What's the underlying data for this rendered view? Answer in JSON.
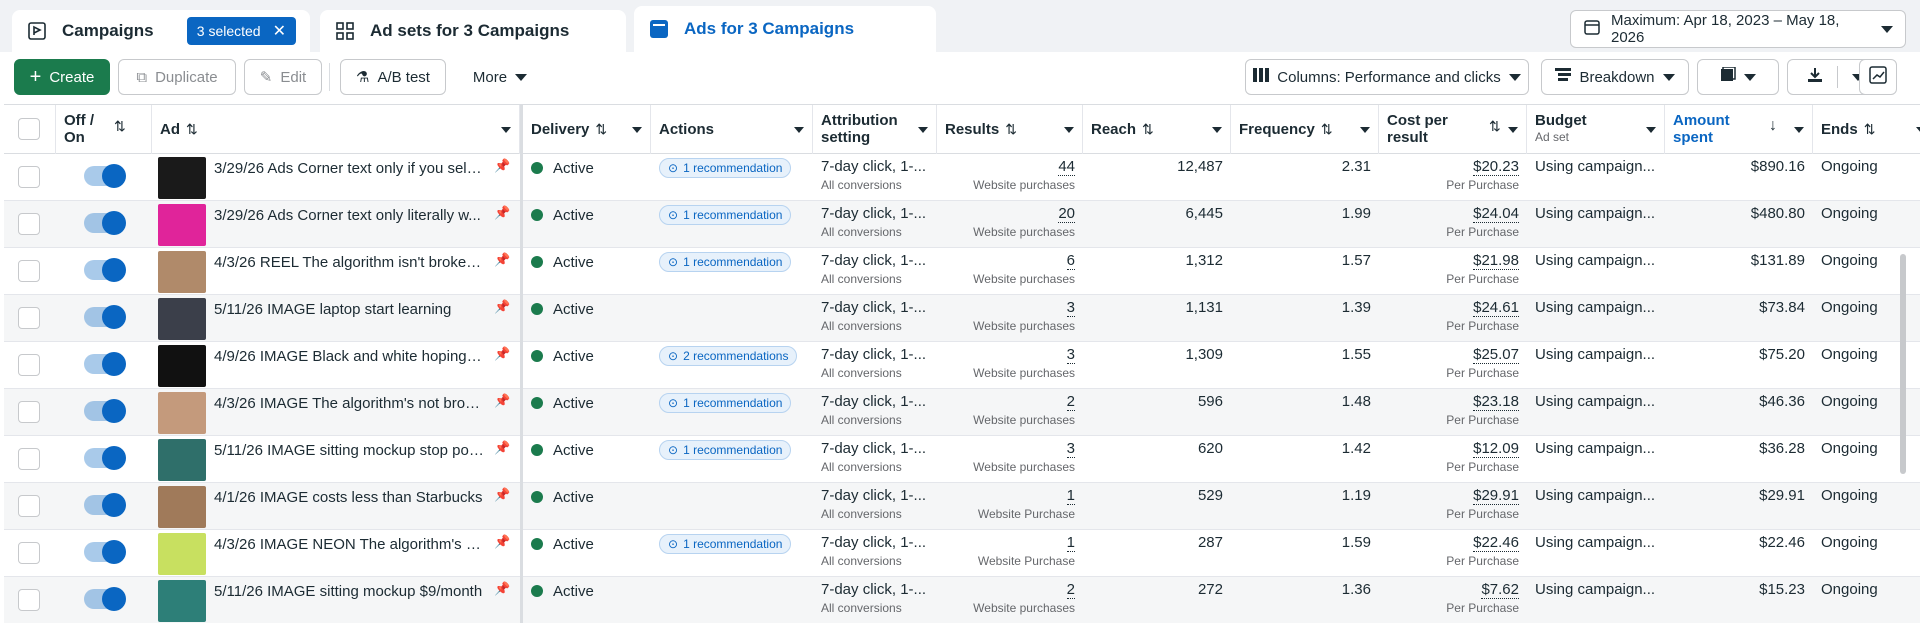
{
  "tabs": {
    "campaigns": "Campaigns",
    "selected": "3 selected",
    "adsets": "Ad sets for 3 Campaigns",
    "ads": "Ads for 3 Campaigns"
  },
  "date_range": "Maximum: Apr 18, 2023 – May 18, 2026",
  "toolbar": {
    "create": "Create",
    "duplicate": "Duplicate",
    "edit": "Edit",
    "ab_test": "A/B test",
    "more": "More",
    "columns": "Columns: Performance and clicks",
    "breakdown": "Breakdown"
  },
  "columns": {
    "off_on_1": "Off /",
    "off_on_2": "On",
    "ad": "Ad",
    "delivery": "Delivery",
    "actions": "Actions",
    "attribution_1": "Attribution",
    "attribution_2": "setting",
    "results": "Results",
    "reach": "Reach",
    "frequency": "Frequency",
    "cpr_1": "Cost per",
    "cpr_2": "result",
    "budget": "Budget",
    "budget_sub": "Ad set",
    "amount_1": "Amount",
    "amount_2": "spent",
    "ends": "Ends"
  },
  "rows": [
    {
      "name": "3/29/26 Ads Corner text only if you sell ...",
      "delivery": "Active",
      "rec": "1 recommendation",
      "attr": "7-day click, 1-...",
      "attr_sub": "All conversions",
      "results": "44",
      "results_sub": "Website purchases",
      "reach": "12,487",
      "freq": "2.31",
      "cpr": "$20.23",
      "cpr_sub": "Per Purchase",
      "budget": "Using campaign...",
      "spent": "$890.16",
      "ends": "Ongoing",
      "thumb": "#1a1a1a"
    },
    {
      "name": "3/29/26 Ads Corner text only literally w...",
      "delivery": "Active",
      "rec": "1 recommendation",
      "attr": "7-day click, 1-...",
      "attr_sub": "All conversions",
      "results": "20",
      "results_sub": "Website purchases",
      "reach": "6,445",
      "freq": "1.99",
      "cpr": "$24.04",
      "cpr_sub": "Per Purchase",
      "budget": "Using campaign...",
      "spent": "$480.80",
      "ends": "Ongoing",
      "thumb": "#e0249a"
    },
    {
      "name": "4/3/26 REEL The algorithm isn't broken...",
      "delivery": "Active",
      "rec": "1 recommendation",
      "attr": "7-day click, 1-...",
      "attr_sub": "All conversions",
      "results": "6",
      "results_sub": "Website purchases",
      "reach": "1,312",
      "freq": "1.57",
      "cpr": "$21.98",
      "cpr_sub": "Per Purchase",
      "budget": "Using campaign...",
      "spent": "$131.89",
      "ends": "Ongoing",
      "thumb": "#b08a6a"
    },
    {
      "name": "5/11/26 IMAGE laptop start learning",
      "delivery": "Active",
      "rec": "",
      "attr": "7-day click, 1-...",
      "attr_sub": "All conversions",
      "results": "3",
      "results_sub": "Website purchases",
      "reach": "1,131",
      "freq": "1.39",
      "cpr": "$24.61",
      "cpr_sub": "Per Purchase",
      "budget": "Using campaign...",
      "spent": "$73.84",
      "ends": "Ongoing",
      "thumb": "#3b3f4a"
    },
    {
      "name": "4/9/26 IMAGE Black and white hoping a...",
      "delivery": "Active",
      "rec": "2 recommendations",
      "attr": "7-day click, 1-...",
      "attr_sub": "All conversions",
      "results": "3",
      "results_sub": "Website purchases",
      "reach": "1,309",
      "freq": "1.55",
      "cpr": "$25.07",
      "cpr_sub": "Per Purchase",
      "budget": "Using campaign...",
      "spent": "$75.20",
      "ends": "Ongoing",
      "thumb": "#111111"
    },
    {
      "name": "4/3/26 IMAGE The algorithm's not brok...",
      "delivery": "Active",
      "rec": "1 recommendation",
      "attr": "7-day click, 1-...",
      "attr_sub": "All conversions",
      "results": "2",
      "results_sub": "Website purchases",
      "reach": "596",
      "freq": "1.48",
      "cpr": "$23.18",
      "cpr_sub": "Per Purchase",
      "budget": "Using campaign...",
      "spent": "$46.36",
      "ends": "Ongoing",
      "thumb": "#c49a7c"
    },
    {
      "name": "5/11/26 IMAGE sitting mockup stop pos...",
      "delivery": "Active",
      "rec": "1 recommendation",
      "attr": "7-day click, 1-...",
      "attr_sub": "All conversions",
      "results": "3",
      "results_sub": "Website purchases",
      "reach": "620",
      "freq": "1.42",
      "cpr": "$12.09",
      "cpr_sub": "Per Purchase",
      "budget": "Using campaign...",
      "spent": "$36.28",
      "ends": "Ongoing",
      "thumb": "#2f6f6a"
    },
    {
      "name": "4/1/26 IMAGE costs less than Starbucks",
      "delivery": "Active",
      "rec": "",
      "attr": "7-day click, 1-...",
      "attr_sub": "All conversions",
      "results": "1",
      "results_sub": "Website Purchase",
      "reach": "529",
      "freq": "1.19",
      "cpr": "$29.91",
      "cpr_sub": "Per Purchase",
      "budget": "Using campaign...",
      "spent": "$29.91",
      "ends": "Ongoing",
      "thumb": "#a07a5a"
    },
    {
      "name": "4/3/26 IMAGE NEON The algorithm's n...",
      "delivery": "Active",
      "rec": "1 recommendation",
      "attr": "7-day click, 1-...",
      "attr_sub": "All conversions",
      "results": "1",
      "results_sub": "Website Purchase",
      "reach": "287",
      "freq": "1.59",
      "cpr": "$22.46",
      "cpr_sub": "Per Purchase",
      "budget": "Using campaign...",
      "spent": "$22.46",
      "ends": "Ongoing",
      "thumb": "#c8e060"
    },
    {
      "name": "5/11/26 IMAGE sitting mockup $9/month",
      "delivery": "Active",
      "rec": "",
      "attr": "7-day click, 1-...",
      "attr_sub": "All conversions",
      "results": "2",
      "results_sub": "Website purchases",
      "reach": "272",
      "freq": "1.36",
      "cpr": "$7.62",
      "cpr_sub": "Per Purchase",
      "budget": "Using campaign...",
      "spent": "$15.23",
      "ends": "Ongoing",
      "thumb": "#2d7f78"
    }
  ]
}
